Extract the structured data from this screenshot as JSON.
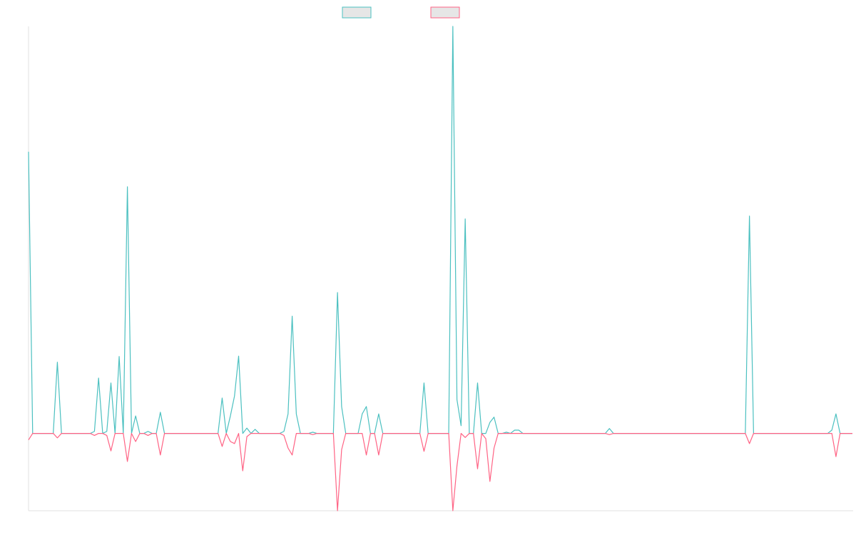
{
  "chart_data": {
    "type": "line",
    "categories": [
      null,
      null,
      null,
      null,
      null,
      null,
      null,
      null,
      null,
      null,
      null,
      null,
      null,
      null,
      null,
      null,
      null,
      null,
      null,
      null,
      null,
      null,
      null,
      null,
      null,
      null,
      null,
      null,
      null,
      null,
      null,
      null,
      null,
      null,
      null,
      null,
      null,
      null,
      null,
      null,
      null,
      null,
      null,
      null,
      null,
      null,
      null,
      null,
      null,
      null,
      null,
      null,
      null,
      null,
      null,
      null,
      null,
      null,
      null,
      null,
      null,
      null,
      null,
      null,
      null,
      null,
      null,
      null,
      null,
      null,
      null,
      null,
      null,
      null,
      null,
      null,
      null,
      null,
      null,
      null,
      null,
      null,
      null,
      null,
      null,
      null,
      null,
      null,
      null,
      null,
      null,
      null,
      null,
      null,
      null,
      null,
      null,
      null,
      null,
      null,
      null,
      null,
      null,
      null,
      null,
      null,
      null,
      null,
      null,
      null,
      null,
      null,
      null,
      null,
      null,
      null,
      null,
      null,
      null,
      null,
      null,
      null,
      null,
      null,
      null,
      null,
      null,
      null,
      null,
      null,
      null,
      null,
      null,
      null,
      null,
      null,
      null,
      null,
      null,
      null,
      null,
      null,
      null,
      null,
      null,
      null,
      null,
      null,
      null,
      null,
      null,
      null,
      null,
      null,
      null,
      null,
      null,
      null,
      null,
      null,
      null,
      null,
      null,
      null,
      null,
      null,
      null,
      null,
      null,
      null,
      null,
      null,
      null,
      null,
      null,
      null,
      null,
      null,
      null,
      null,
      null,
      null,
      null,
      null,
      null,
      null,
      null,
      null,
      null,
      null,
      null,
      null,
      null,
      null,
      null,
      null,
      null,
      null,
      null,
      null,
      null
    ],
    "series": [
      {
        "color": "#4bc0c0",
        "values": [
          69.2,
          0,
          0,
          0,
          0,
          0,
          0,
          17.5,
          0,
          0,
          0,
          0,
          0,
          0,
          0,
          0,
          0.5,
          13.6,
          0,
          0.5,
          12.4,
          0,
          18.9,
          0,
          60.6,
          0,
          4.3,
          0,
          0,
          0.5,
          0,
          0,
          5.2,
          0,
          0,
          0,
          0,
          0,
          0,
          0,
          0,
          0,
          0,
          0,
          0,
          0,
          0,
          8.7,
          0,
          4.3,
          9.2,
          19,
          0,
          1.3,
          0,
          1,
          0,
          0,
          0,
          0,
          0,
          0,
          0.5,
          4.8,
          28.8,
          4.8,
          0,
          0,
          0,
          0.3,
          0,
          0,
          0,
          0,
          0,
          34.6,
          6.6,
          0,
          0,
          0,
          0,
          4.8,
          6.6,
          0,
          0,
          4.8,
          0,
          0,
          0,
          0,
          0,
          0,
          0,
          0,
          0,
          0,
          12.4,
          0,
          0,
          0,
          0,
          0,
          0,
          100,
          8.3,
          1.9,
          52.7,
          0,
          0,
          12.4,
          0,
          0,
          2.7,
          4,
          0,
          0,
          0.3,
          0,
          0.8,
          0.8,
          0,
          0,
          0,
          0,
          0,
          0,
          0,
          0,
          0,
          0,
          0,
          0,
          0,
          0,
          0,
          0,
          0,
          0,
          0,
          0,
          0,
          1.2,
          0,
          0,
          0,
          0,
          0,
          0,
          0,
          0,
          0,
          0,
          0,
          0,
          0,
          0,
          0,
          0,
          0,
          0,
          0,
          0,
          0,
          0,
          0,
          0,
          0,
          0,
          0,
          0,
          0,
          0,
          0,
          0,
          0,
          53.4,
          0,
          0,
          0,
          0,
          0,
          0,
          0,
          0,
          0,
          0,
          0,
          0,
          0,
          0,
          0,
          0,
          0,
          0,
          0,
          0.8,
          4.8,
          0,
          0,
          0,
          0
        ]
      },
      {
        "color": "#ff6384",
        "values": [
          -1.6,
          0,
          0,
          0,
          0,
          0,
          0,
          -1.1,
          0,
          0,
          0,
          0,
          0,
          0,
          0,
          0,
          -0.5,
          0,
          0,
          -0.5,
          -4.3,
          0,
          0,
          0,
          -6.9,
          0,
          -2,
          0,
          0,
          -0.5,
          0,
          0,
          -5.3,
          0,
          0,
          0,
          0,
          0,
          0,
          0,
          0,
          0,
          0,
          0,
          0,
          0,
          0,
          -3.2,
          0,
          -2,
          -2.5,
          0,
          -9.2,
          -0.8,
          0,
          0,
          0,
          0,
          0,
          0,
          0,
          0,
          -0.5,
          -3.6,
          -5.3,
          0,
          0,
          0,
          0,
          -0.3,
          0,
          0,
          0,
          0,
          0,
          -19,
          -4,
          0,
          0,
          0,
          0,
          0,
          -5.3,
          0,
          0,
          -5.3,
          0,
          0,
          0,
          0,
          0,
          0,
          0,
          0,
          0,
          0,
          -4.4,
          0,
          0,
          0,
          0,
          0,
          0,
          -19,
          -8,
          0,
          -1,
          0,
          0,
          -8.7,
          0,
          -1.3,
          -11.8,
          -3.6,
          0,
          0,
          0,
          0,
          0,
          0,
          0,
          0,
          0,
          0,
          0,
          0,
          0,
          0,
          0,
          0,
          0,
          0,
          0,
          0,
          0,
          0,
          0,
          0,
          0,
          0,
          0,
          -0.3,
          0,
          0,
          0,
          0,
          0,
          0,
          0,
          0,
          0,
          0,
          0,
          0,
          0,
          0,
          0,
          0,
          0,
          0,
          0,
          0,
          0,
          0,
          0,
          0,
          0,
          0,
          0,
          0,
          0,
          0,
          0,
          0,
          0,
          -2.5,
          0,
          0,
          0,
          0,
          0,
          0,
          0,
          0,
          0,
          0,
          0,
          0,
          0,
          0,
          0,
          0,
          0,
          0,
          0,
          0,
          -5.7,
          0,
          0,
          0,
          0
        ]
      }
    ],
    "ylim": [
      -19,
      100
    ]
  }
}
